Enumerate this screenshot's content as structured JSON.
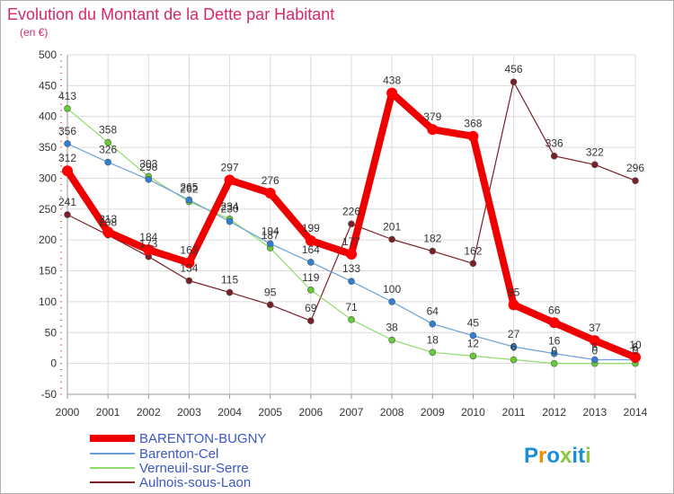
{
  "chart_data": {
    "type": "line",
    "title": "Evolution du Montant de la Dette par Habitant",
    "subtitle": "(en €)",
    "xlabel": "",
    "ylabel": "",
    "x": [
      "2000",
      "2001",
      "2002",
      "2003",
      "2004",
      "2005",
      "2006",
      "2007",
      "2008",
      "2009",
      "2010",
      "2011",
      "2012",
      "2013",
      "2014"
    ],
    "ylim": [
      -50,
      500
    ],
    "yticks": [
      -50,
      0,
      50,
      100,
      150,
      200,
      250,
      300,
      350,
      400,
      450,
      500
    ],
    "grid": true,
    "legend_position": "bottom-left",
    "series": [
      {
        "name": "BARENTON-BUGNY",
        "color": "#ff0000",
        "line_color": "#ee0000",
        "values": [
          312,
          213,
          184,
          163,
          297,
          276,
          199,
          177,
          438,
          379,
          368,
          95,
          66,
          37,
          10
        ],
        "labels": [
          "312",
          "213",
          "184",
          "163",
          "297",
          "276",
          "199",
          "177",
          "438",
          "379",
          "368",
          "95",
          "66",
          "37",
          "10"
        ]
      },
      {
        "name": "Barenton-Cel",
        "color": "#2f7fd6",
        "line_color": "#6a9fd8",
        "values": [
          356,
          326,
          298,
          265,
          230,
          194,
          164,
          133,
          100,
          64,
          45,
          27,
          16,
          6,
          6
        ],
        "labels": [
          "356",
          "326",
          "298",
          "265",
          "230",
          "194",
          "164",
          "133",
          "100",
          "64",
          "45",
          "27",
          "16",
          "6",
          "6"
        ]
      },
      {
        "name": "Verneuil-sur-Serre",
        "color": "#66cc33",
        "line_color": "#8fdc6a",
        "values": [
          413,
          358,
          303,
          262,
          234,
          187,
          119,
          71,
          38,
          18,
          12,
          6,
          0,
          0,
          0
        ],
        "labels": [
          "413",
          "358",
          "303",
          "262",
          "234",
          "187",
          "119",
          "71",
          "38",
          "18",
          "12",
          "6",
          "0",
          "0",
          "0"
        ]
      },
      {
        "name": "Aulnois-sous-Laon",
        "color": "#7a1f26",
        "line_color": "#7a1f26",
        "values": [
          241,
          208,
          173,
          134,
          115,
          95,
          69,
          226,
          201,
          182,
          162,
          456,
          336,
          322,
          296
        ],
        "labels": [
          "241",
          "208",
          "173",
          "134",
          "115",
          "95",
          "69",
          "226",
          "201",
          "182",
          "162",
          "456",
          "336",
          "322",
          "296"
        ]
      }
    ]
  },
  "logo": {
    "text": "Proxiti",
    "letter_colors": [
      "#1a8fd6",
      "#f28c00",
      "#1a8fd6",
      "#8cc63f",
      "#1a8fd6",
      "#1a8fd6",
      "#8cc63f"
    ]
  }
}
